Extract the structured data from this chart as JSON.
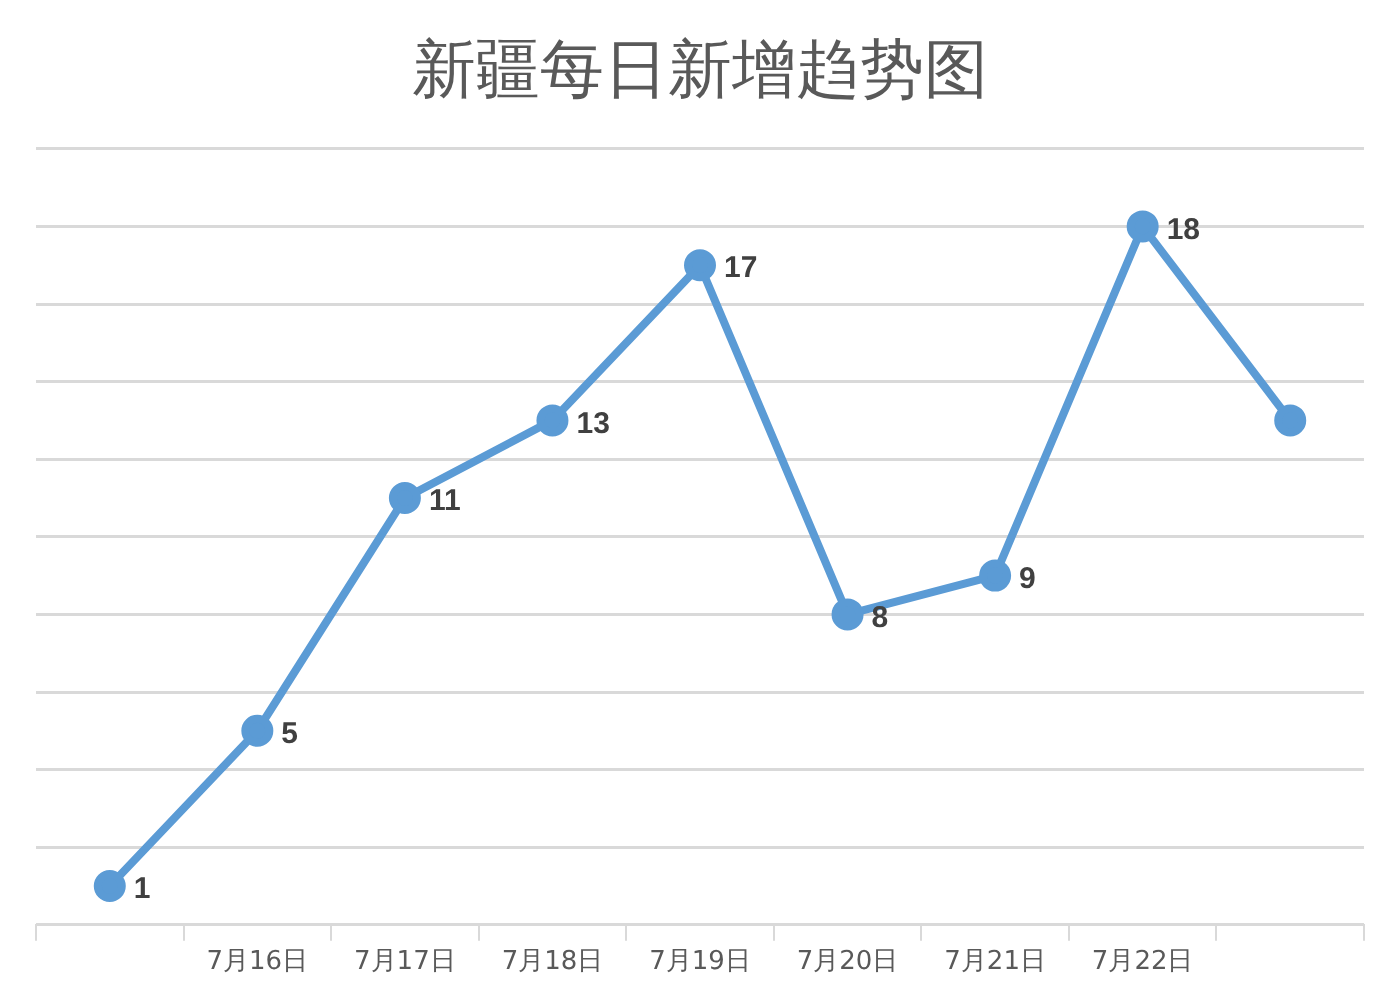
{
  "chart_data": {
    "type": "line",
    "title": "新疆每日新增趋势图",
    "categories": [
      null,
      "7月16日",
      "7月17日",
      "7月18日",
      "7月19日",
      "7月20日",
      "7月21日",
      "7月22日",
      null
    ],
    "series": [
      {
        "color": "#5b9bd5",
        "values": [
          1,
          5,
          11,
          13,
          17,
          8,
          9,
          18,
          13
        ],
        "value_labels": [
          "1",
          "5",
          "11",
          "13",
          "17",
          "8",
          "9",
          "18",
          null
        ]
      }
    ],
    "ylim": [
      0,
      20
    ],
    "yticks": [
      {
        "value": 0,
        "label": null
      },
      {
        "value": 2,
        "label": null
      },
      {
        "value": 4,
        "label": null
      },
      {
        "value": 6,
        "label": null
      },
      {
        "value": 8,
        "label": null
      },
      {
        "value": 10,
        "label": null
      },
      {
        "value": 12,
        "label": null
      },
      {
        "value": 14,
        "label": null
      },
      {
        "value": 16,
        "label": null
      },
      {
        "value": 18,
        "label": null
      },
      {
        "value": 20,
        "label": null
      }
    ],
    "grid": "y",
    "tick_labels": "x",
    "legend": false,
    "marker": "circle",
    "line_style": "solid"
  }
}
